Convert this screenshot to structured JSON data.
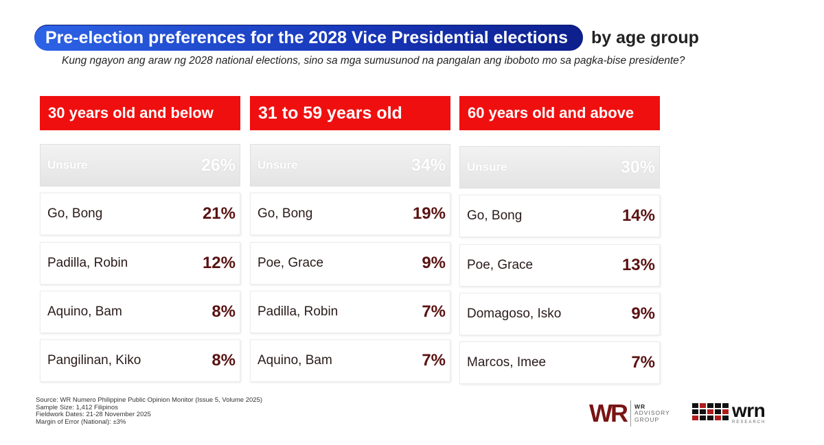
{
  "title": {
    "highlight": "Pre-election preferences for the 2028 Vice Presidential elections",
    "suffix": "by age group"
  },
  "subtitle": "Kung ngayon ang araw ng 2028 national elections, sino sa mga sumusunod na pangalan ang iboboto mo sa pagka-bise presidente?",
  "colors": {
    "header_red": "#f00f0f",
    "title_blue": "#1736b8",
    "percent_maroon": "#5a1212",
    "logo_maroon": "#7a1414"
  },
  "chart_data": {
    "type": "table",
    "unit": "%",
    "groups": [
      {
        "label": "30 years old and below",
        "rows": [
          {
            "name": "Unsure",
            "display": "26%",
            "value": 26
          },
          {
            "name": "Go, Bong",
            "display": "21%",
            "value": 21
          },
          {
            "name": "Padilla, Robin",
            "display": "12%",
            "value": 12
          },
          {
            "name": "Aquino, Bam",
            "display": "8%",
            "value": 8
          },
          {
            "name": "Pangilinan, Kiko",
            "display": "8%",
            "value": 8
          }
        ]
      },
      {
        "label": "31 to 59 years old",
        "rows": [
          {
            "name": "Unsure",
            "display": "34%",
            "value": 34
          },
          {
            "name": "Go, Bong",
            "display": "19%",
            "value": 19
          },
          {
            "name": "Poe, Grace",
            "display": "9%",
            "value": 9
          },
          {
            "name": "Padilla, Robin",
            "display": "7%",
            "value": 7
          },
          {
            "name": "Aquino, Bam",
            "display": "7%",
            "value": 7
          }
        ]
      },
      {
        "label": "60 years old and above",
        "rows": [
          {
            "name": "Unsure",
            "display": "30%",
            "value": 30
          },
          {
            "name": "Go, Bong",
            "display": "14%",
            "value": 14
          },
          {
            "name": "Poe, Grace",
            "display": "13%",
            "value": 13
          },
          {
            "name": "Domagoso, Isko",
            "display": "9%",
            "value": 9
          },
          {
            "name": "Marcos, Imee",
            "display": "7%",
            "value": 7
          }
        ]
      }
    ]
  },
  "source": {
    "line1": "Source: WR Numero Philippine Public Opinion Monitor (Issue 5, Volume 2025)",
    "line2": "Sample Size: 1,412 Filipinos",
    "line3": "Fieldwork Dates: 21-28 November 2025",
    "line4": "Margin of Error (National): ±3%"
  },
  "logos": {
    "wr_mark": "WR",
    "wr_line1": "WR",
    "wr_line2": "ADVISORY",
    "wr_line3": "GROUP",
    "wrn_word": "wrn",
    "wrn_sub": "RESEARCH"
  }
}
